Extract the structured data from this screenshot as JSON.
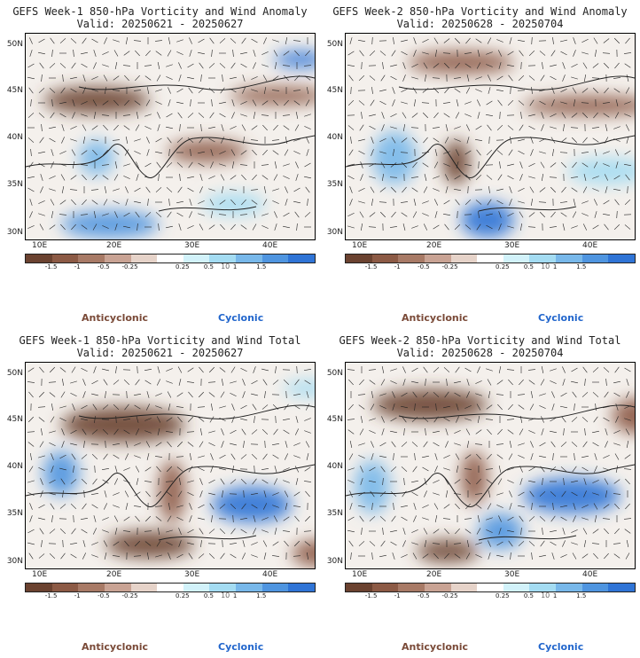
{
  "panels": [
    {
      "title": "GEFS Week-1 850-hPa Vorticity and Wind Anomaly",
      "valid": "Valid: 20250621 - 20250627"
    },
    {
      "title": "GEFS Week-2 850-hPa Vorticity and Wind Anomaly",
      "valid": "Valid: 20250628 - 20250704"
    },
    {
      "title": "GEFS Week-1 850-hPa Vorticity and Wind Total",
      "valid": "Valid: 20250621 - 20250627"
    },
    {
      "title": "GEFS Week-2 850-hPa Vorticity and Wind Total",
      "valid": "Valid: 20250628 - 20250704"
    }
  ],
  "axes": {
    "lat_labels": [
      "50N",
      "45N",
      "40N",
      "35N",
      "30N"
    ],
    "lon_labels": [
      "10E",
      "20E",
      "30E",
      "40E"
    ]
  },
  "colorbar": {
    "labels": [
      "-1.5",
      "-1",
      "-0.5",
      "-0.25",
      "0.25",
      "0.5",
      "1",
      "1.5"
    ],
    "scale_note": "10",
    "colors": [
      "#6b4230",
      "#8c5a45",
      "#a87a66",
      "#c9a394",
      "#e6d3c9",
      "#ffffff",
      "#d2f2fa",
      "#a4dcf2",
      "#78b8ea",
      "#4f95e0",
      "#2f74d6"
    ]
  },
  "legend": {
    "anticyclonic": "Anticyclonic",
    "cyclonic": "Cyclonic"
  }
}
